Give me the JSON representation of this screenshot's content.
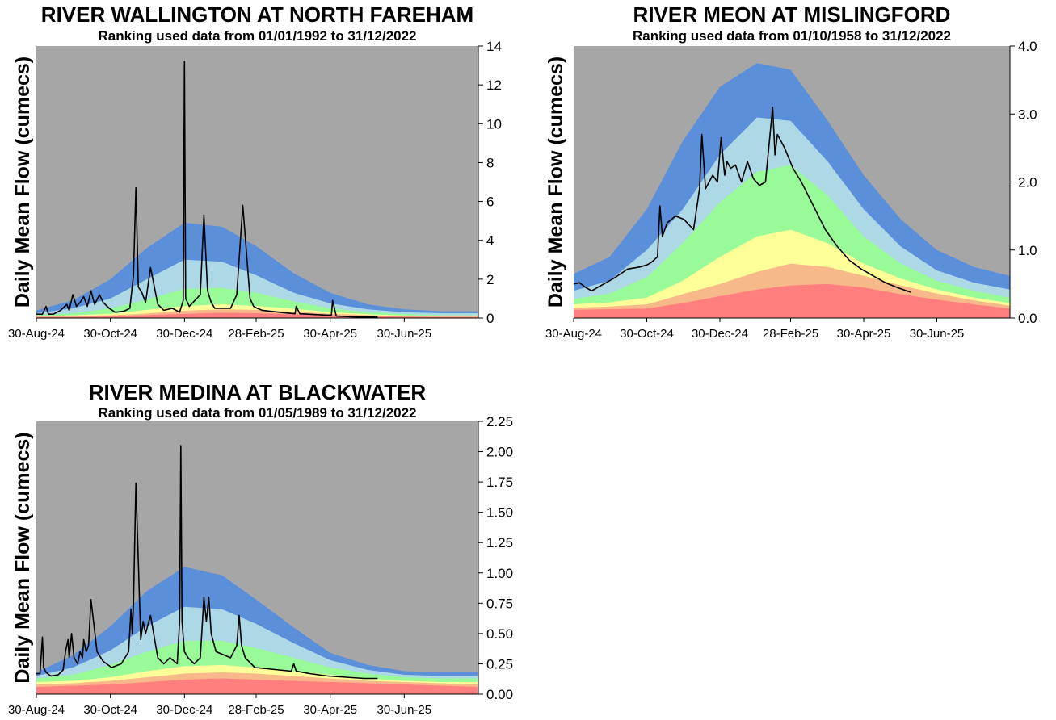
{
  "colors": {
    "background": "#a6a6a6",
    "band_very_high": "#5b8fd9",
    "band_high": "#add8e6",
    "band_normal": "#98fb98",
    "band_low": "#ffff99",
    "band_very_low": "#f8b98a",
    "band_extremely_low": "#ff7f7f",
    "flow_line": "#000000"
  },
  "ylabel": "Daily Mean Flow (cumecs)",
  "chart_data": [
    {
      "type": "area",
      "title": "RIVER WALLINGTON AT NORTH FAREHAM",
      "subtitle": "Ranking used data from 01/01/1992 to 31/12/2022",
      "ylabel": "Daily Mean Flow (cumecs)",
      "ylim": [
        0,
        14
      ],
      "yticks": [
        "0",
        "2",
        "4",
        "6",
        "8",
        "10",
        "12",
        "14"
      ],
      "xticks": [
        "30-Aug-24",
        "30-Oct-24",
        "30-Dec-24",
        "28-Feb-25",
        "30-Apr-25",
        "30-Jun-25"
      ],
      "band_boundaries": {
        "x_days": [
          0,
          30,
          61,
          91,
          122,
          153,
          181,
          212,
          242,
          273,
          303,
          334,
          364
        ],
        "series": [
          {
            "name": "extremely_low_top",
            "values": [
              0.05,
              0.06,
              0.09,
              0.15,
              0.22,
              0.27,
              0.25,
              0.2,
              0.14,
              0.1,
              0.07,
              0.05,
              0.05
            ]
          },
          {
            "name": "very_low_top",
            "values": [
              0.08,
              0.1,
              0.14,
              0.24,
              0.38,
              0.45,
              0.42,
              0.33,
              0.22,
              0.15,
              0.1,
              0.08,
              0.08
            ]
          },
          {
            "name": "low_top",
            "values": [
              0.1,
              0.14,
              0.22,
              0.42,
              0.62,
              0.7,
              0.62,
              0.48,
              0.3,
              0.2,
              0.13,
              0.1,
              0.1
            ]
          },
          {
            "name": "normal_top",
            "values": [
              0.15,
              0.25,
              0.5,
              0.95,
              1.5,
              1.55,
              1.3,
              0.85,
              0.5,
              0.3,
              0.2,
              0.15,
              0.15
            ]
          },
          {
            "name": "high_top",
            "values": [
              0.25,
              0.5,
              1.0,
              2.0,
              3.0,
              2.9,
              2.2,
              1.3,
              0.75,
              0.45,
              0.3,
              0.25,
              0.25
            ]
          },
          {
            "name": "very_high_top",
            "values": [
              0.4,
              0.9,
              2.0,
              3.6,
              4.9,
              4.7,
              3.7,
              2.3,
              1.3,
              0.7,
              0.45,
              0.35,
              0.35
            ]
          }
        ]
      },
      "flow": {
        "x_days": [
          0,
          5,
          8,
          10,
          14,
          20,
          25,
          27,
          30,
          33,
          36,
          39,
          42,
          45,
          48,
          52,
          55,
          60,
          65,
          72,
          77,
          80,
          82,
          84,
          87,
          90,
          94,
          100,
          105,
          112,
          118,
          121,
          122,
          123,
          126,
          135,
          138,
          141,
          144,
          147,
          150,
          160,
          165,
          170,
          176,
          179,
          182,
          186,
          200,
          213,
          214,
          217,
          240,
          243,
          244,
          247,
          265,
          281
        ],
        "values": [
          0.2,
          0.2,
          0.6,
          0.2,
          0.2,
          0.4,
          0.7,
          0.4,
          1.2,
          0.6,
          0.8,
          1.1,
          0.6,
          1.4,
          0.7,
          1.2,
          0.8,
          0.5,
          0.3,
          0.35,
          0.5,
          2.2,
          6.7,
          1.6,
          1.3,
          0.8,
          2.6,
          0.7,
          0.4,
          0.5,
          0.3,
          0.9,
          13.2,
          1.0,
          0.6,
          1.2,
          5.3,
          1.4,
          0.8,
          0.5,
          0.5,
          0.5,
          1.2,
          5.8,
          1.0,
          0.6,
          0.5,
          0.4,
          0.3,
          0.22,
          0.6,
          0.22,
          0.15,
          0.15,
          0.9,
          0.1,
          0.05,
          0.05
        ]
      }
    },
    {
      "type": "area",
      "title": "RIVER MEON AT MISLINGFORD",
      "subtitle": "Ranking used data from 01/10/1958 to 31/12/2022",
      "ylabel": "Daily Mean Flow (cumecs)",
      "ylim": [
        0,
        4
      ],
      "yticks": [
        "0.0",
        "1.0",
        "2.0",
        "3.0",
        "4.0"
      ],
      "xticks": [
        "30-Aug-24",
        "30-Oct-24",
        "30-Dec-24",
        "28-Feb-25",
        "30-Apr-25",
        "30-Jun-25"
      ],
      "band_boundaries": {
        "x_days": [
          0,
          30,
          61,
          91,
          122,
          153,
          181,
          212,
          242,
          273,
          303,
          334,
          364
        ],
        "series": [
          {
            "name": "extremely_low_top",
            "values": [
              0.12,
              0.13,
              0.14,
              0.22,
              0.32,
              0.42,
              0.48,
              0.5,
              0.45,
              0.35,
              0.27,
              0.2,
              0.14
            ]
          },
          {
            "name": "very_low_top",
            "values": [
              0.15,
              0.17,
              0.2,
              0.35,
              0.5,
              0.68,
              0.8,
              0.75,
              0.62,
              0.48,
              0.36,
              0.26,
              0.18
            ]
          },
          {
            "name": "low_top",
            "values": [
              0.2,
              0.23,
              0.3,
              0.55,
              0.9,
              1.2,
              1.3,
              1.1,
              0.8,
              0.58,
              0.42,
              0.3,
              0.22
            ]
          },
          {
            "name": "normal_top",
            "values": [
              0.28,
              0.36,
              0.6,
              1.1,
              1.7,
              2.15,
              2.25,
              1.8,
              1.2,
              0.8,
              0.55,
              0.4,
              0.3
            ]
          },
          {
            "name": "high_top",
            "values": [
              0.4,
              0.55,
              1.0,
              1.6,
              2.4,
              2.95,
              2.9,
              2.3,
              1.6,
              1.05,
              0.7,
              0.52,
              0.42
            ]
          },
          {
            "name": "very_high_top",
            "values": [
              0.65,
              0.9,
              1.6,
              2.6,
              3.4,
              3.75,
              3.65,
              2.9,
              2.1,
              1.45,
              1.0,
              0.75,
              0.62
            ]
          }
        ]
      },
      "flow": {
        "x_days": [
          0,
          5,
          10,
          15,
          20,
          25,
          30,
          35,
          45,
          55,
          61,
          65,
          70,
          72,
          74,
          78,
          85,
          92,
          100,
          105,
          107,
          110,
          113,
          116,
          120,
          123,
          126,
          128,
          131,
          135,
          140,
          145,
          150,
          155,
          160,
          166,
          168,
          170,
          176,
          183,
          190,
          200,
          210,
          220,
          230,
          240,
          250,
          260,
          270,
          281
        ],
        "values": [
          0.5,
          0.52,
          0.45,
          0.4,
          0.45,
          0.5,
          0.55,
          0.6,
          0.72,
          0.75,
          0.78,
          0.82,
          0.9,
          1.65,
          1.2,
          1.4,
          1.5,
          1.45,
          1.3,
          1.9,
          2.7,
          1.9,
          2.0,
          2.1,
          2.0,
          2.65,
          2.1,
          2.3,
          2.2,
          2.25,
          2.0,
          2.3,
          2.05,
          1.95,
          2.0,
          3.1,
          2.4,
          2.7,
          2.5,
          2.2,
          2.0,
          1.65,
          1.3,
          1.05,
          0.85,
          0.72,
          0.62,
          0.52,
          0.45,
          0.38
        ]
      }
    },
    {
      "type": "area",
      "title": "RIVER MEDINA AT BLACKWATER",
      "subtitle": "Ranking used data from 01/05/1989 to 31/12/2022",
      "ylabel": "Daily Mean Flow (cumecs)",
      "ylim": [
        0,
        2.25
      ],
      "yticks": [
        "0.00",
        "0.25",
        "0.50",
        "0.75",
        "1.00",
        "1.25",
        "1.50",
        "1.75",
        "2.00",
        "2.25"
      ],
      "xticks": [
        "30-Aug-24",
        "30-Oct-24",
        "30-Dec-24",
        "28-Feb-25",
        "30-Apr-25",
        "30-Jun-25"
      ],
      "band_boundaries": {
        "x_days": [
          0,
          30,
          61,
          91,
          122,
          153,
          181,
          212,
          242,
          273,
          303,
          334,
          364
        ],
        "series": [
          {
            "name": "extremely_low_top",
            "values": [
              0.06,
              0.07,
              0.08,
              0.1,
              0.12,
              0.13,
              0.12,
              0.11,
              0.1,
              0.09,
              0.08,
              0.07,
              0.06
            ]
          },
          {
            "name": "very_low_top",
            "values": [
              0.08,
              0.09,
              0.11,
              0.14,
              0.17,
              0.18,
              0.17,
              0.15,
              0.13,
              0.11,
              0.1,
              0.09,
              0.08
            ]
          },
          {
            "name": "low_top",
            "values": [
              0.1,
              0.11,
              0.14,
              0.19,
              0.23,
              0.24,
              0.22,
              0.19,
              0.16,
              0.13,
              0.11,
              0.1,
              0.1
            ]
          },
          {
            "name": "normal_top",
            "values": [
              0.13,
              0.16,
              0.24,
              0.35,
              0.44,
              0.44,
              0.38,
              0.3,
              0.22,
              0.17,
              0.14,
              0.13,
              0.13
            ]
          },
          {
            "name": "high_top",
            "values": [
              0.15,
              0.22,
              0.36,
              0.56,
              0.72,
              0.7,
              0.58,
              0.42,
              0.28,
              0.2,
              0.16,
              0.15,
              0.15
            ]
          },
          {
            "name": "very_high_top",
            "values": [
              0.18,
              0.32,
              0.56,
              0.85,
              1.05,
              0.98,
              0.78,
              0.55,
              0.34,
              0.24,
              0.19,
              0.18,
              0.18
            ]
          }
        ]
      },
      "flow": {
        "x_days": [
          0,
          3,
          5,
          6,
          8,
          12,
          18,
          22,
          24,
          26,
          27,
          29,
          31,
          34,
          36,
          38,
          39,
          41,
          43,
          45,
          50,
          55,
          62,
          70,
          76,
          78,
          79,
          80,
          82,
          86,
          88,
          90,
          94,
          100,
          105,
          110,
          116,
          118,
          119,
          120,
          122,
          125,
          130,
          135,
          138,
          140,
          142,
          144,
          148,
          160,
          165,
          167,
          169,
          172,
          180,
          200,
          210,
          212,
          214,
          225,
          240,
          255,
          270,
          281
        ],
        "values": [
          0.17,
          0.17,
          0.47,
          0.22,
          0.18,
          0.15,
          0.16,
          0.2,
          0.35,
          0.45,
          0.3,
          0.5,
          0.3,
          0.25,
          0.35,
          0.3,
          0.45,
          0.35,
          0.4,
          0.78,
          0.35,
          0.27,
          0.22,
          0.25,
          0.35,
          0.7,
          0.5,
          0.75,
          1.74,
          0.45,
          0.6,
          0.5,
          0.65,
          0.3,
          0.25,
          0.3,
          0.25,
          0.6,
          2.05,
          0.6,
          0.35,
          0.3,
          0.25,
          0.3,
          0.8,
          0.6,
          0.8,
          0.5,
          0.35,
          0.3,
          0.4,
          0.65,
          0.4,
          0.3,
          0.22,
          0.2,
          0.19,
          0.25,
          0.19,
          0.17,
          0.15,
          0.14,
          0.13,
          0.13
        ]
      }
    }
  ]
}
